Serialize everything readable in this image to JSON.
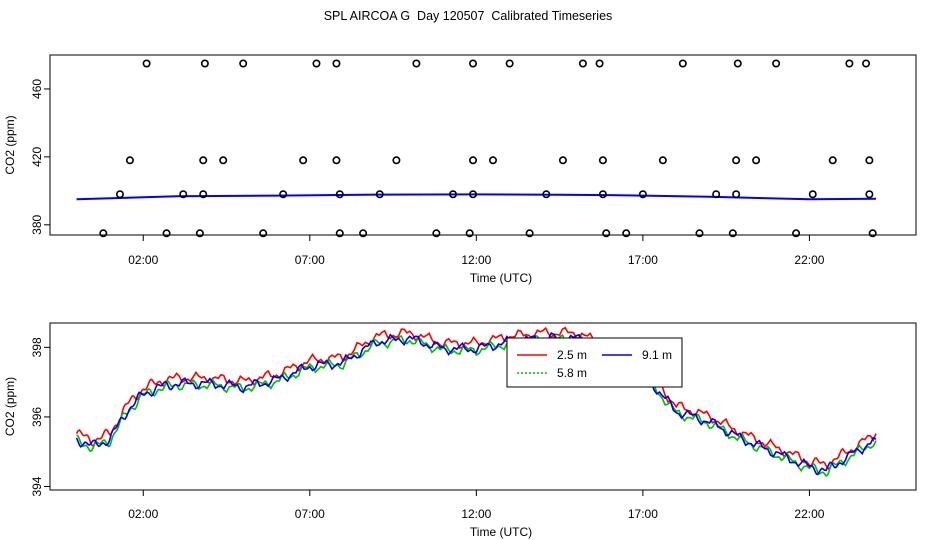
{
  "title": "SPL AIRCOA G  Day 120507  Calibrated Timeseries",
  "chart_data": [
    {
      "type": "scatter",
      "xlabel": "Time (UTC)",
      "ylabel": "CO2 (ppm)",
      "x_tick_labels": [
        "02:00",
        "07:00",
        "12:00",
        "17:00",
        "22:00"
      ],
      "x_ticks_hours": [
        2,
        7,
        12,
        17,
        22
      ],
      "y_ticks": [
        380,
        420,
        460
      ],
      "xlim_hours": [
        -0.8,
        25.2
      ],
      "ylim": [
        374,
        480
      ],
      "line_series": [
        {
          "name": "",
          "color": "#0000ff",
          "x": [
            0.0,
            3.0,
            6.0,
            9.0,
            12.0,
            14.5,
            16.0,
            19.0,
            22.0,
            24.0
          ],
          "y": [
            395.0,
            396.8,
            397.2,
            397.8,
            397.9,
            397.7,
            397.5,
            396.5,
            395.0,
            395.3
          ]
        }
      ],
      "points": [
        {
          "x": 0.8,
          "y": 375
        },
        {
          "x": 1.3,
          "y": 398
        },
        {
          "x": 1.6,
          "y": 418
        },
        {
          "x": 2.1,
          "y": 475
        },
        {
          "x": 2.7,
          "y": 375
        },
        {
          "x": 3.2,
          "y": 398
        },
        {
          "x": 3.7,
          "y": 375
        },
        {
          "x": 3.8,
          "y": 398
        },
        {
          "x": 3.8,
          "y": 418
        },
        {
          "x": 3.85,
          "y": 475
        },
        {
          "x": 4.4,
          "y": 418
        },
        {
          "x": 5.0,
          "y": 475
        },
        {
          "x": 5.6,
          "y": 375
        },
        {
          "x": 6.2,
          "y": 398
        },
        {
          "x": 6.8,
          "y": 418
        },
        {
          "x": 7.2,
          "y": 475
        },
        {
          "x": 7.8,
          "y": 475
        },
        {
          "x": 7.8,
          "y": 418
        },
        {
          "x": 7.9,
          "y": 398
        },
        {
          "x": 7.9,
          "y": 375
        },
        {
          "x": 8.6,
          "y": 375
        },
        {
          "x": 9.1,
          "y": 398
        },
        {
          "x": 9.6,
          "y": 418
        },
        {
          "x": 10.2,
          "y": 475
        },
        {
          "x": 10.8,
          "y": 375
        },
        {
          "x": 11.3,
          "y": 398
        },
        {
          "x": 11.8,
          "y": 375
        },
        {
          "x": 11.9,
          "y": 398
        },
        {
          "x": 11.9,
          "y": 418
        },
        {
          "x": 11.9,
          "y": 475
        },
        {
          "x": 12.5,
          "y": 418
        },
        {
          "x": 13.0,
          "y": 475
        },
        {
          "x": 13.6,
          "y": 375
        },
        {
          "x": 14.1,
          "y": 398
        },
        {
          "x": 14.6,
          "y": 418
        },
        {
          "x": 15.2,
          "y": 475
        },
        {
          "x": 15.7,
          "y": 475
        },
        {
          "x": 15.8,
          "y": 418
        },
        {
          "x": 15.8,
          "y": 398
        },
        {
          "x": 15.9,
          "y": 375
        },
        {
          "x": 16.5,
          "y": 375
        },
        {
          "x": 17.0,
          "y": 398
        },
        {
          "x": 17.6,
          "y": 418
        },
        {
          "x": 18.2,
          "y": 475
        },
        {
          "x": 18.7,
          "y": 375
        },
        {
          "x": 19.2,
          "y": 398
        },
        {
          "x": 19.7,
          "y": 375
        },
        {
          "x": 19.8,
          "y": 398
        },
        {
          "x": 19.8,
          "y": 418
        },
        {
          "x": 19.85,
          "y": 475
        },
        {
          "x": 20.4,
          "y": 418
        },
        {
          "x": 21.0,
          "y": 475
        },
        {
          "x": 21.6,
          "y": 375
        },
        {
          "x": 22.1,
          "y": 398
        },
        {
          "x": 22.7,
          "y": 418
        },
        {
          "x": 23.2,
          "y": 475
        },
        {
          "x": 23.7,
          "y": 475
        },
        {
          "x": 23.8,
          "y": 418
        },
        {
          "x": 23.8,
          "y": 398
        },
        {
          "x": 23.9,
          "y": 375
        }
      ]
    },
    {
      "type": "line",
      "xlabel": "Time (UTC)",
      "ylabel": "CO2 (ppm)",
      "x_tick_labels": [
        "02:00",
        "07:00",
        "12:00",
        "17:00",
        "22:00"
      ],
      "x_ticks_hours": [
        2,
        7,
        12,
        17,
        22
      ],
      "y_ticks": [
        394,
        396,
        398
      ],
      "xlim_hours": [
        -0.8,
        25.2
      ],
      "ylim": [
        393.9,
        398.7
      ],
      "legend": {
        "position": "top-center"
      },
      "series": [
        {
          "name": "2.5 m",
          "color": "#ff0000",
          "offset": 0.12,
          "x": [
            0.0,
            0.5,
            1.0,
            1.5,
            2.0,
            2.5,
            3.0,
            4.0,
            5.0,
            6.0,
            7.0,
            8.0,
            9.0,
            10.0,
            11.0,
            12.0,
            13.0,
            14.0,
            15.0,
            16.0,
            17.0,
            18.0,
            19.0,
            20.0,
            21.0,
            22.0,
            22.5,
            23.0,
            24.0
          ],
          "y": [
            395.4,
            395.2,
            395.4,
            396.2,
            396.7,
            396.9,
            397.0,
            397.0,
            396.9,
            397.1,
            397.5,
            397.6,
            398.2,
            398.3,
            398.0,
            398.0,
            398.2,
            398.3,
            398.3,
            397.9,
            397.3,
            396.2,
            395.9,
            395.4,
            395.0,
            394.6,
            394.5,
            394.8,
            395.4
          ]
        },
        {
          "name": "5.8 m",
          "color": "#00bb00",
          "offset": -0.08,
          "x": [
            0.0,
            0.5,
            1.0,
            1.5,
            2.0,
            2.5,
            3.0,
            4.0,
            5.0,
            6.0,
            7.0,
            8.0,
            9.0,
            10.0,
            11.0,
            12.0,
            13.0,
            14.0,
            15.0,
            16.0,
            17.0,
            18.0,
            19.0,
            20.0,
            21.0,
            22.0,
            22.5,
            23.0,
            24.0
          ],
          "y": [
            395.4,
            395.2,
            395.4,
            396.2,
            396.7,
            396.9,
            397.0,
            397.0,
            396.9,
            397.1,
            397.5,
            397.6,
            398.2,
            398.3,
            398.0,
            398.0,
            398.2,
            398.3,
            398.3,
            397.9,
            397.3,
            396.2,
            395.9,
            395.4,
            395.0,
            394.6,
            394.5,
            394.8,
            395.4
          ]
        },
        {
          "name": "9.1 m",
          "color": "#0000ee",
          "offset": -0.04,
          "x": [
            0.0,
            0.5,
            1.0,
            1.5,
            2.0,
            2.5,
            3.0,
            4.0,
            5.0,
            6.0,
            7.0,
            8.0,
            9.0,
            10.0,
            11.0,
            12.0,
            13.0,
            14.0,
            15.0,
            16.0,
            17.0,
            18.0,
            19.0,
            20.0,
            21.0,
            22.0,
            22.5,
            23.0,
            24.0
          ],
          "y": [
            395.4,
            395.2,
            395.4,
            396.2,
            396.7,
            396.9,
            397.0,
            397.0,
            396.9,
            397.1,
            397.5,
            397.6,
            398.2,
            398.3,
            398.0,
            398.0,
            398.2,
            398.3,
            398.3,
            397.9,
            397.3,
            396.2,
            395.9,
            395.4,
            395.0,
            394.6,
            394.5,
            394.8,
            395.4
          ]
        }
      ]
    }
  ]
}
